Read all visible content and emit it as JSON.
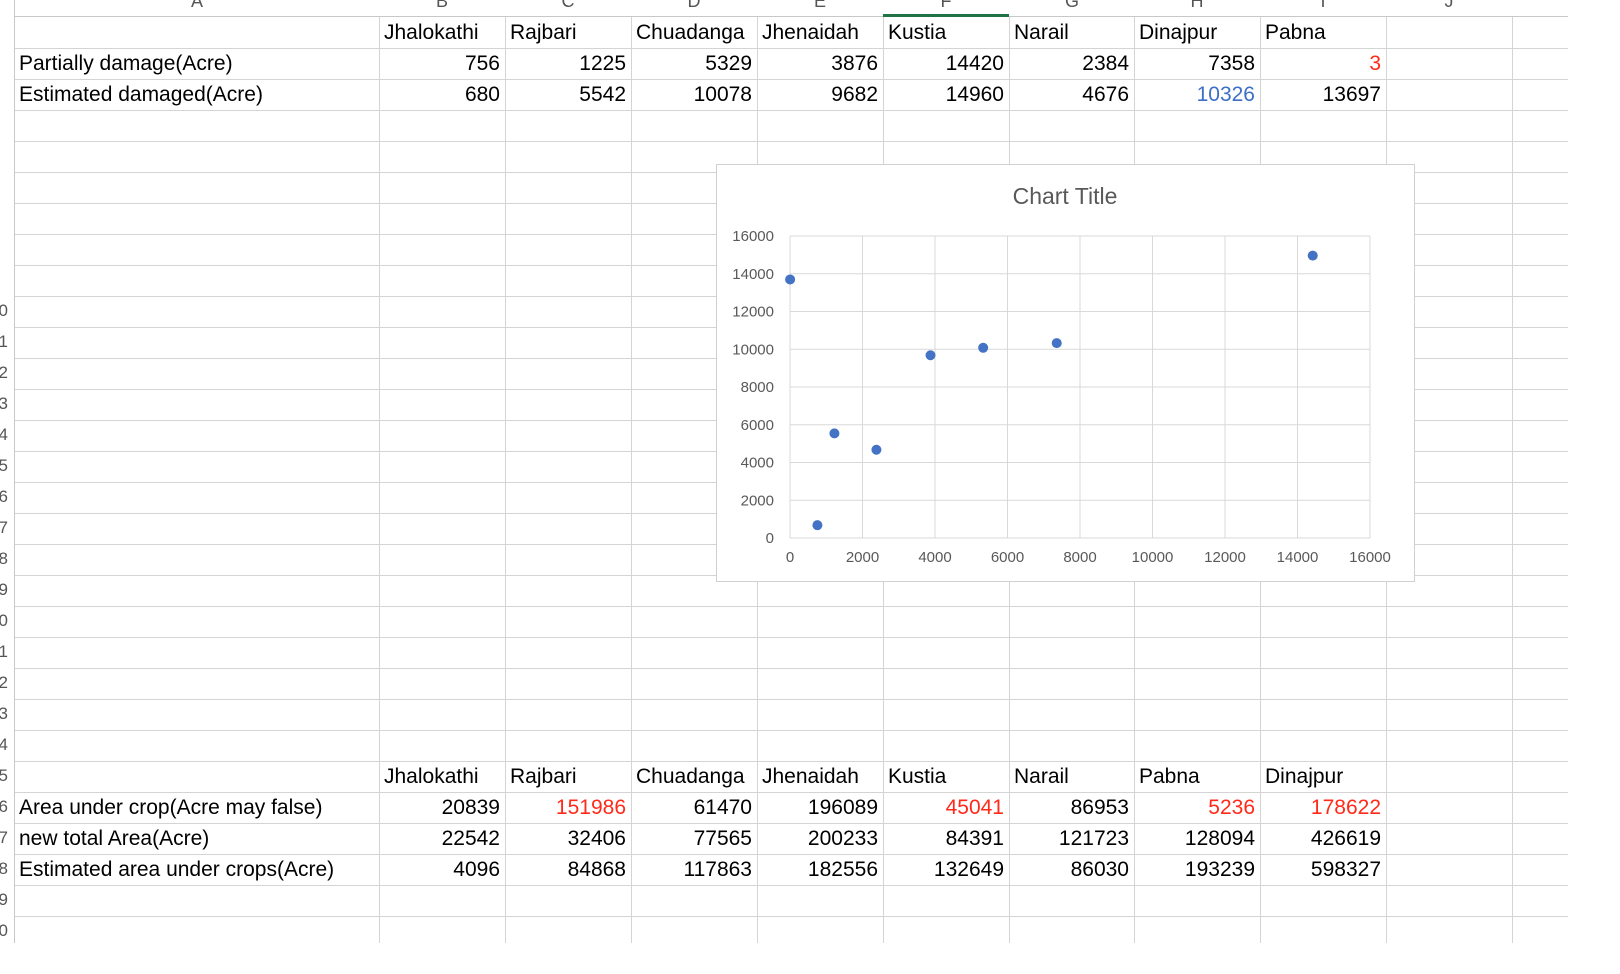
{
  "column_letters": [
    "A",
    "B",
    "C",
    "D",
    "E",
    "F",
    "G",
    "H",
    "I",
    "J"
  ],
  "row_numbers": [
    "0",
    "1",
    "2",
    "3",
    "4",
    "5",
    "6",
    "7",
    "8",
    "9",
    "0",
    "1",
    "2",
    "3",
    "4",
    "5",
    "6",
    "7",
    "8",
    "9",
    "0"
  ],
  "table1": {
    "headers": [
      "Jhalokathi",
      "Rajbari",
      "Chuadanga",
      "Jhenaidah",
      "Kustia",
      "Narail",
      "Dinajpur",
      "Pabna"
    ],
    "rows": [
      {
        "label": "Partially damage(Acre)",
        "values": [
          "756",
          "1225",
          "5329",
          "3876",
          "14420",
          "2384",
          "7358",
          "3"
        ]
      },
      {
        "label": "Estimated damaged(Acre)",
        "values": [
          "680",
          "5542",
          "10078",
          "9682",
          "14960",
          "4676",
          "10326",
          "13697"
        ]
      }
    ]
  },
  "table2": {
    "headers": [
      "Jhalokathi",
      "Rajbari",
      "Chuadanga",
      "Jhenaidah",
      "Kustia",
      "Narail",
      "Pabna",
      "Dinajpur"
    ],
    "rows": [
      {
        "label": "Area under crop(Acre may false)",
        "values": [
          "20839",
          "151986",
          "61470",
          "196089",
          "45041",
          "86953",
          "5236",
          "178622"
        ]
      },
      {
        "label": "new total Area(Acre)",
        "values": [
          "22542",
          "32406",
          "77565",
          "200233",
          "84391",
          "121723",
          "128094",
          "426619"
        ]
      },
      {
        "label": "Estimated area under crops(Acre)",
        "values": [
          "4096",
          "84868",
          "117863",
          "182556",
          "132649",
          "86030",
          "193239",
          "598327"
        ]
      }
    ]
  },
  "colors": {
    "accent": "#217346",
    "red_text": "#ff2a1a",
    "blue_text": "#3c6fc5",
    "marker": "#4472c4",
    "grid": "#d9d9d9"
  },
  "chart_data": {
    "type": "scatter",
    "title": "Chart Title",
    "xlim": [
      0,
      16000
    ],
    "ylim": [
      0,
      16000
    ],
    "x_ticks": [
      0,
      2000,
      4000,
      6000,
      8000,
      10000,
      12000,
      14000,
      16000
    ],
    "y_ticks": [
      0,
      2000,
      4000,
      6000,
      8000,
      10000,
      12000,
      14000,
      16000
    ],
    "grid": true,
    "points": [
      {
        "x": 756,
        "y": 680
      },
      {
        "x": 1225,
        "y": 5542
      },
      {
        "x": 5329,
        "y": 10078
      },
      {
        "x": 3876,
        "y": 9682
      },
      {
        "x": 14420,
        "y": 14960
      },
      {
        "x": 2384,
        "y": 4676
      },
      {
        "x": 7358,
        "y": 10326
      },
      {
        "x": 3,
        "y": 13697
      }
    ]
  }
}
